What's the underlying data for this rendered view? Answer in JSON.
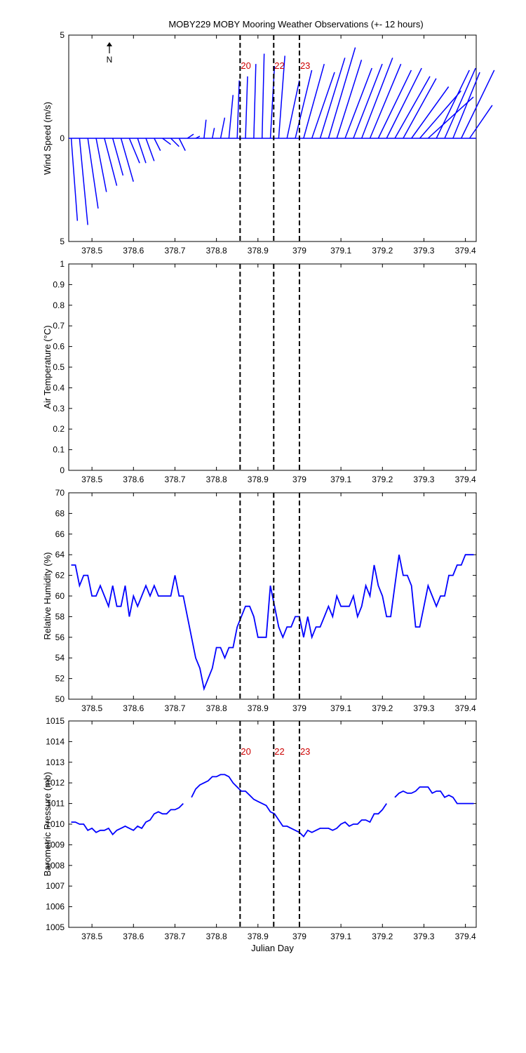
{
  "chart_data": [
    {
      "type": "stick",
      "title": "MOBY229 MOBY Mooring Weather Observations (+- 12 hours)",
      "y_label": "Wind Speed (m/s)",
      "north_label": "N",
      "color": "#0000ff",
      "x": [
        378.45,
        378.47,
        378.49,
        378.51,
        378.53,
        378.55,
        378.57,
        378.59,
        378.61,
        378.63,
        378.65,
        378.67,
        378.69,
        378.71,
        378.73,
        378.75,
        378.77,
        378.79,
        378.81,
        378.83,
        378.85,
        378.87,
        378.89,
        378.91,
        378.93,
        378.95,
        378.97,
        378.99,
        379.01,
        379.03,
        379.05,
        379.07,
        379.09,
        379.11,
        379.13,
        379.15,
        379.17,
        379.19,
        379.21,
        379.23,
        379.25,
        379.27,
        379.29,
        379.31,
        379.33,
        379.35,
        379.37,
        379.39,
        379.41
      ],
      "u": [
        0.3,
        0.4,
        0.5,
        0.5,
        0.6,
        0.5,
        0.6,
        0.5,
        0.4,
        0.4,
        0.3,
        0.4,
        0.4,
        0.3,
        0.3,
        0.2,
        0.1,
        0.1,
        0.2,
        0.2,
        0.1,
        0.1,
        0.1,
        0.1,
        0.2,
        0.3,
        0.6,
        0.8,
        1.0,
        1.1,
        1.2,
        1.3,
        1.2,
        1.3,
        1.4,
        1.5,
        1.5,
        1.6,
        1.7,
        1.7,
        1.6,
        1.8,
        2.0,
        2.2,
        1.6,
        1.5,
        1.3,
        1.6,
        1.1
      ],
      "v": [
        -4,
        -4.2,
        -3.4,
        -2.6,
        -2.3,
        -1.8,
        -2.1,
        -1.2,
        -1.2,
        -1.1,
        -0.6,
        -0.3,
        -0.4,
        -0.6,
        0.2,
        0.1,
        0.9,
        0.5,
        1.0,
        2.1,
        2.8,
        3.0,
        3.6,
        4.1,
        3.5,
        4.0,
        2.8,
        3.3,
        3.6,
        3.2,
        3.9,
        4.4,
        3.8,
        3.4,
        3.6,
        3.9,
        3.6,
        3.3,
        3.4,
        3.0,
        2.9,
        2.5,
        2.3,
        2.0,
        3.3,
        3.4,
        3.2,
        3.3,
        1.6
      ],
      "xlim": [
        378.444,
        379.426
      ],
      "xticks": [
        378.5,
        378.6,
        378.7,
        378.8,
        378.9,
        379,
        379.1,
        379.2,
        379.3,
        379.4
      ],
      "ylim": [
        -5,
        5
      ],
      "yticks": [
        {
          "value": -5,
          "label": "5"
        },
        0,
        5
      ],
      "vlines": [
        378.857,
        378.938,
        379.0
      ],
      "vline_labels": [
        "20",
        "22",
        "23"
      ],
      "vline_label_color": "#cc0000"
    },
    {
      "type": "line",
      "y_label": "Air Temperature (°C)",
      "series": [],
      "xlim": [
        378.444,
        379.426
      ],
      "xticks": [
        378.5,
        378.6,
        378.7,
        378.8,
        378.9,
        379,
        379.1,
        379.2,
        379.3,
        379.4
      ],
      "ylim": [
        0,
        1
      ],
      "yticks": [
        0,
        0.1,
        0.2,
        0.3,
        0.4,
        0.5,
        0.6,
        0.7,
        0.8,
        0.9,
        1
      ],
      "vlines": [
        378.857,
        378.938,
        379.0
      ]
    },
    {
      "type": "line",
      "y_label": "Relative Humidity (%)",
      "x": [
        378.45,
        378.46,
        378.47,
        378.48,
        378.49,
        378.5,
        378.51,
        378.52,
        378.53,
        378.54,
        378.55,
        378.56,
        378.57,
        378.58,
        378.59,
        378.6,
        378.61,
        378.62,
        378.63,
        378.64,
        378.65,
        378.66,
        378.67,
        378.68,
        378.69,
        378.7,
        378.71,
        378.72,
        378.73,
        378.74,
        378.75,
        378.76,
        378.77,
        378.78,
        378.79,
        378.8,
        378.81,
        378.82,
        378.83,
        378.84,
        378.85,
        378.86,
        378.87,
        378.88,
        378.89,
        378.9,
        378.91,
        378.92,
        378.93,
        378.94,
        378.95,
        378.96,
        378.97,
        378.98,
        378.99,
        379,
        379.01,
        379.02,
        379.03,
        379.04,
        379.05,
        379.06,
        379.07,
        379.08,
        379.09,
        379.1,
        379.11,
        379.12,
        379.13,
        379.14,
        379.15,
        379.16,
        379.17,
        379.18,
        379.19,
        379.2,
        379.21,
        379.22,
        379.23,
        379.24,
        379.25,
        379.26,
        379.27,
        379.28,
        379.29,
        379.3,
        379.31,
        379.32,
        379.33,
        379.34,
        379.35,
        379.36,
        379.37,
        379.38,
        379.39,
        379.4,
        379.41,
        379.42
      ],
      "series": [
        {
          "color": "#0000ff",
          "values": [
            63,
            63,
            61,
            62,
            62,
            60,
            60,
            61,
            60,
            59,
            61,
            59,
            59,
            61,
            58,
            60,
            59,
            60,
            61,
            60,
            61,
            60,
            60,
            60,
            60,
            62,
            60,
            60,
            58,
            56,
            54,
            53,
            51,
            52,
            53,
            55,
            55,
            54,
            55,
            55,
            57,
            58,
            59,
            59,
            58,
            56,
            56,
            56,
            61,
            59,
            57,
            56,
            57,
            57,
            58,
            58,
            56,
            58,
            56,
            57,
            57,
            58,
            59,
            58,
            60,
            59,
            59,
            59,
            60,
            58,
            59,
            61,
            60,
            63,
            61,
            60,
            58,
            58,
            61,
            64,
            62,
            62,
            61,
            57,
            57,
            59,
            61,
            60,
            59,
            60,
            60,
            62,
            62,
            63,
            63,
            64,
            64,
            64
          ]
        }
      ],
      "xlim": [
        378.444,
        379.426
      ],
      "xticks": [
        378.5,
        378.6,
        378.7,
        378.8,
        378.9,
        379,
        379.1,
        379.2,
        379.3,
        379.4
      ],
      "ylim": [
        50,
        70
      ],
      "yticks": [
        50,
        52,
        54,
        56,
        58,
        60,
        62,
        64,
        66,
        68,
        70
      ],
      "vlines": [
        378.857,
        378.938,
        379.0
      ]
    },
    {
      "type": "line",
      "y_label": "Barometric Pressure (mb)",
      "x_label": "Julian Day",
      "x": [
        378.45,
        378.46,
        378.47,
        378.48,
        378.49,
        378.5,
        378.51,
        378.52,
        378.53,
        378.54,
        378.55,
        378.56,
        378.57,
        378.58,
        378.59,
        378.6,
        378.61,
        378.62,
        378.63,
        378.64,
        378.65,
        378.66,
        378.67,
        378.68,
        378.69,
        378.7,
        378.71,
        378.72,
        378.73,
        378.74,
        378.75,
        378.76,
        378.77,
        378.78,
        378.79,
        378.8,
        378.81,
        378.82,
        378.83,
        378.84,
        378.85,
        378.86,
        378.87,
        378.88,
        378.89,
        378.9,
        378.91,
        378.92,
        378.93,
        378.94,
        378.95,
        378.96,
        378.97,
        378.98,
        378.99,
        379,
        379.01,
        379.02,
        379.03,
        379.04,
        379.05,
        379.06,
        379.07,
        379.08,
        379.09,
        379.1,
        379.11,
        379.12,
        379.13,
        379.14,
        379.15,
        379.16,
        379.17,
        379.18,
        379.19,
        379.2,
        379.21,
        379.22,
        379.23,
        379.24,
        379.25,
        379.26,
        379.27,
        379.28,
        379.29,
        379.3,
        379.31,
        379.32,
        379.33,
        379.34,
        379.35,
        379.36,
        379.37,
        379.38,
        379.39,
        379.4,
        379.41,
        379.42
      ],
      "series": [
        {
          "color": "#0000ff",
          "values": [
            1010.1,
            1010.1,
            1010,
            1010,
            1009.7,
            1009.8,
            1009.6,
            1009.7,
            1009.7,
            1009.8,
            1009.5,
            1009.7,
            1009.8,
            1009.9,
            1009.8,
            1009.7,
            1009.9,
            1009.8,
            1010.1,
            1010.2,
            1010.5,
            1010.6,
            1010.5,
            1010.5,
            1010.7,
            1010.7,
            1010.8,
            1011,
            null,
            1011.3,
            1011.7,
            1011.9,
            1012,
            1012.1,
            1012.3,
            1012.3,
            1012.4,
            1012.4,
            1012.3,
            1012,
            1011.8,
            1011.6,
            1011.6,
            1011.4,
            1011.2,
            1011.1,
            1011,
            1010.9,
            1010.6,
            1010.5,
            1010.2,
            1009.9,
            1009.9,
            1009.8,
            1009.7,
            1009.6,
            1009.4,
            1009.7,
            1009.6,
            1009.7,
            1009.8,
            1009.8,
            1009.8,
            1009.7,
            1009.8,
            1010,
            1010.1,
            1009.9,
            1010,
            1010,
            1010.2,
            1010.2,
            1010.1,
            1010.5,
            1010.5,
            1010.7,
            1011,
            null,
            1011.3,
            1011.5,
            1011.6,
            1011.5,
            1011.5,
            1011.6,
            1011.8,
            1011.8,
            1011.8,
            1011.5,
            1011.6,
            1011.6,
            1011.3,
            1011.4,
            1011.3,
            1011,
            1011,
            1011,
            1011,
            1011
          ]
        }
      ],
      "xlim": [
        378.444,
        379.426
      ],
      "xticks": [
        378.5,
        378.6,
        378.7,
        378.8,
        378.9,
        379,
        379.1,
        379.2,
        379.3,
        379.4
      ],
      "ylim": [
        1005,
        1015
      ],
      "yticks": [
        1005,
        1006,
        1007,
        1008,
        1009,
        1010,
        1011,
        1012,
        1013,
        1014,
        1015
      ],
      "vlines": [
        378.857,
        378.938,
        379.0
      ],
      "vline_labels": [
        "20",
        "22",
        "23"
      ],
      "vline_label_color": "#cc0000"
    }
  ]
}
